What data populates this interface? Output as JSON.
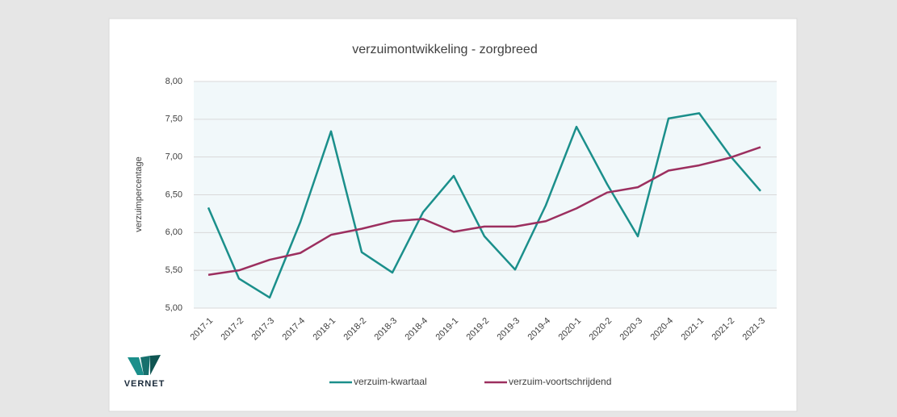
{
  "chart_data": {
    "type": "line",
    "title": "verzuimontwikkeling - zorgbreed",
    "y_label": "verzuimpercentage",
    "logo_text": "VERNET",
    "categories": [
      "2017-1",
      "2017-2",
      "2017-3",
      "2017-4",
      "2018-1",
      "2018-2",
      "2018-3",
      "2018-4",
      "2019-1",
      "2019-2",
      "2019-3",
      "2019-4",
      "2020-1",
      "2020-2",
      "2020-3",
      "2020-4",
      "2021-1",
      "2021-2",
      "2021-3"
    ],
    "series": [
      {
        "name": "verzuim-kwartaal",
        "color": "#1b8f8b",
        "values": [
          6.33,
          5.39,
          5.14,
          6.14,
          7.34,
          5.74,
          5.47,
          6.27,
          6.75,
          5.95,
          5.51,
          6.36,
          7.4,
          6.64,
          5.95,
          7.51,
          7.58,
          7.02,
          6.55
        ]
      },
      {
        "name": "verzuim-voortschrijdend",
        "color": "#9c2f5f",
        "values": [
          5.44,
          5.5,
          5.64,
          5.73,
          5.97,
          6.05,
          6.15,
          6.18,
          6.01,
          6.08,
          6.08,
          6.15,
          6.32,
          6.53,
          6.6,
          6.82,
          6.89,
          6.99,
          7.13
        ]
      }
    ],
    "ylim": [
      5,
      8
    ],
    "yticks": [
      {
        "value": 5,
        "label": "5,00"
      },
      {
        "value": 5.5,
        "label": "5,50"
      },
      {
        "value": 6,
        "label": "6,00"
      },
      {
        "value": 6.5,
        "label": "6,50"
      },
      {
        "value": 7,
        "label": "7,00"
      },
      {
        "value": 7.5,
        "label": "7,50"
      },
      {
        "value": 8,
        "label": "8,00"
      }
    ],
    "grid": true,
    "legend": "bottom"
  }
}
